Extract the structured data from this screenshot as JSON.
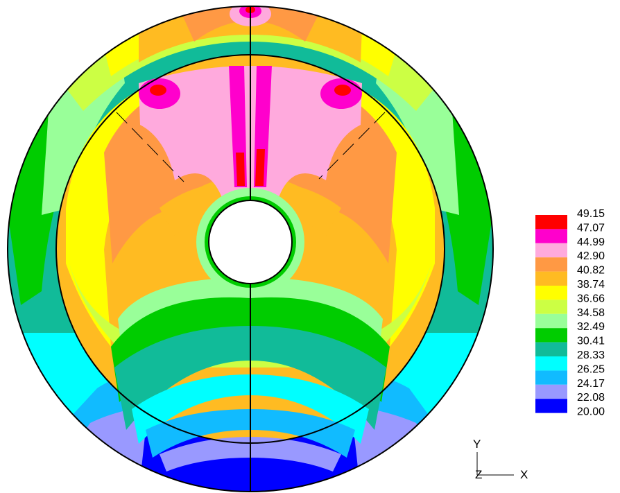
{
  "legend": {
    "labels": [
      "49.15",
      "47.07",
      "44.99",
      "42.90",
      "40.82",
      "38.74",
      "36.66",
      "34.58",
      "32.49",
      "30.41",
      "28.33",
      "26.25",
      "24.17",
      "22.08",
      "20.00"
    ],
    "colors": [
      "#ff0000",
      "#ff00cc",
      "#ffaadd",
      "#ff9944",
      "#ffbb22",
      "#ffff00",
      "#ccff44",
      "#99ff99",
      "#00cc00",
      "#11bb99",
      "#00ffff",
      "#11bbff",
      "#9999ff",
      "#0000ff"
    ]
  },
  "axes": {
    "y": "Y",
    "z": "Z",
    "x": "X"
  },
  "colors": {
    "outline": "#000000",
    "background": "#ffffff"
  }
}
